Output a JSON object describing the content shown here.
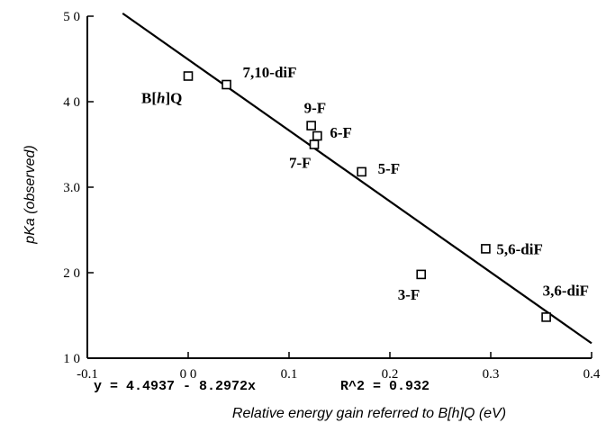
{
  "chart_data": {
    "type": "scatter",
    "xlabel": "Relative energy gain referred to B[h]Q (eV)",
    "ylabel": "pKa (observed)",
    "xlim": [
      -0.1,
      0.4
    ],
    "ylim": [
      1.0,
      5.0
    ],
    "x_ticks": [
      -0.1,
      0.0,
      0.1,
      0.2,
      0.3,
      0.4
    ],
    "x_tick_labels": [
      "-0.1",
      "0 0",
      "0.1",
      "0.2",
      "0.3",
      "0.4"
    ],
    "y_ticks": [
      1.0,
      2.0,
      3.0,
      4.0,
      5.0
    ],
    "y_tick_labels": [
      "1 0",
      "2 0",
      "3.0",
      "4 0",
      "5 0"
    ],
    "points": [
      {
        "label": "B[h]Q",
        "x": 0.0,
        "y": 4.3
      },
      {
        "label": "7,10-diF",
        "x": 0.038,
        "y": 4.2
      },
      {
        "label": "9-F",
        "x": 0.122,
        "y": 3.72
      },
      {
        "label": "6-F",
        "x": 0.128,
        "y": 3.6
      },
      {
        "label": "7-F",
        "x": 0.125,
        "y": 3.5
      },
      {
        "label": "5-F",
        "x": 0.172,
        "y": 3.18
      },
      {
        "label": "3-F",
        "x": 0.231,
        "y": 1.98
      },
      {
        "label": "5,6-diF",
        "x": 0.295,
        "y": 2.28
      },
      {
        "label": "3,6-diF",
        "x": 0.355,
        "y": 1.48
      }
    ],
    "fit": {
      "intercept": 4.4937,
      "slope": -8.2972,
      "equation": "y = 4.4937 - 8.2972x",
      "r2_text": "R^2 = 0.932"
    },
    "grid": false,
    "legend": "none"
  }
}
